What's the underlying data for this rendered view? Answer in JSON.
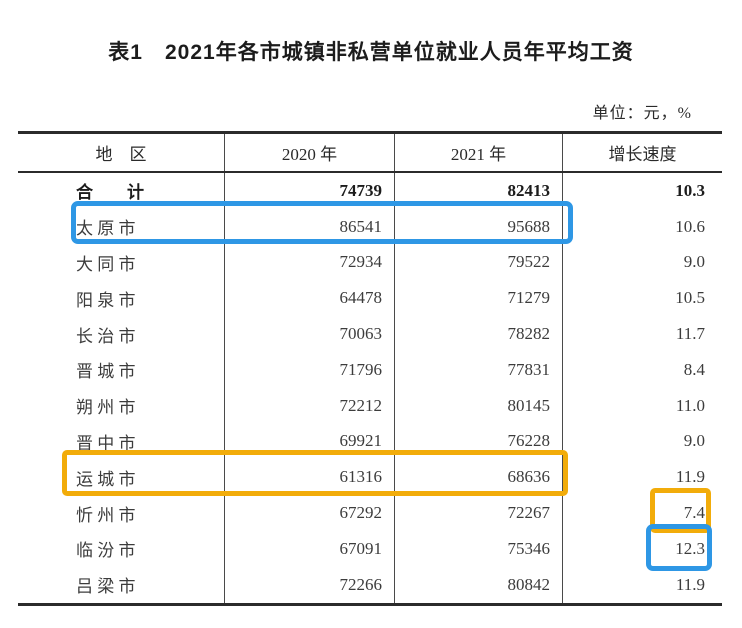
{
  "page": {
    "title": "表1　2021年各市城镇非私营单位就业人员年平均工资",
    "unit_note": "单位：元，%"
  },
  "table": {
    "headers": {
      "region": "地　区",
      "y2020": "2020 年",
      "y2021": "2021 年",
      "growth": "增长速度"
    },
    "rows": [
      {
        "region": "合　　计",
        "y2020": "74739",
        "y2021": "82413",
        "growth": "10.3"
      },
      {
        "region": "太 原 市",
        "y2020": "86541",
        "y2021": "95688",
        "growth": "10.6"
      },
      {
        "region": "大 同 市",
        "y2020": "72934",
        "y2021": "79522",
        "growth": "9.0"
      },
      {
        "region": "阳 泉 市",
        "y2020": "64478",
        "y2021": "71279",
        "growth": "10.5"
      },
      {
        "region": "长 治 市",
        "y2020": "70063",
        "y2021": "78282",
        "growth": "11.7"
      },
      {
        "region": "晋 城 市",
        "y2020": "71796",
        "y2021": "77831",
        "growth": "8.4"
      },
      {
        "region": "朔 州 市",
        "y2020": "72212",
        "y2021": "80145",
        "growth": "11.0"
      },
      {
        "region": "晋 中 市",
        "y2020": "69921",
        "y2021": "76228",
        "growth": "9.0"
      },
      {
        "region": "运 城 市",
        "y2020": "61316",
        "y2021": "68636",
        "growth": "11.9"
      },
      {
        "region": "忻 州 市",
        "y2020": "67292",
        "y2021": "72267",
        "growth": "7.4"
      },
      {
        "region": "临 汾 市",
        "y2020": "67091",
        "y2021": "75346",
        "growth": "12.3"
      },
      {
        "region": "吕 梁 市",
        "y2020": "72266",
        "y2021": "80842",
        "growth": "11.9"
      }
    ]
  },
  "highlights": {
    "blue": "#2E97E5",
    "orange": "#F2AC0A",
    "blue_row_target": "太原市 2020/2021 values",
    "orange_row_target": "运城市 2020/2021 values",
    "orange_cell_target": "忻州市 growth 7.4",
    "blue_cell_target": "临汾市 growth 12.3"
  }
}
